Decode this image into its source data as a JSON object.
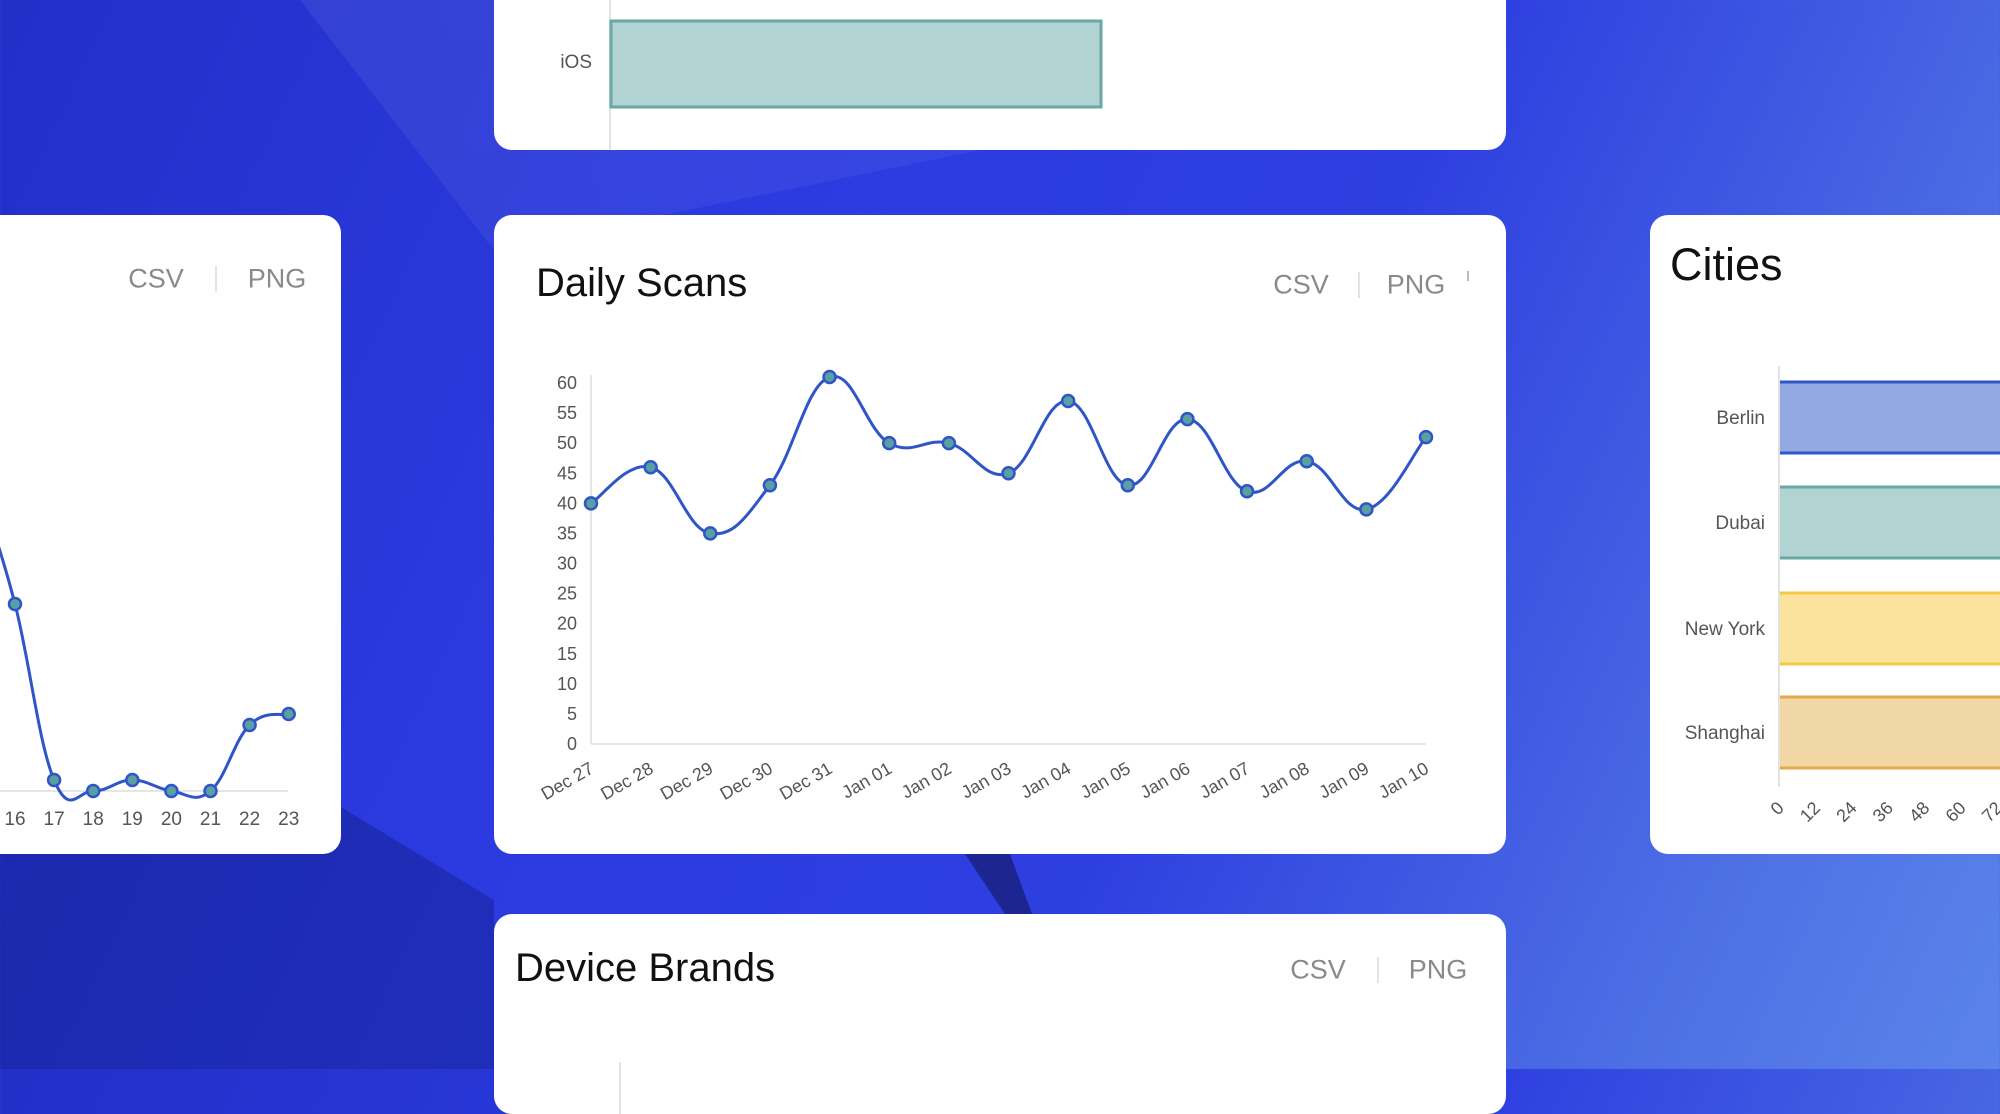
{
  "colors": {
    "line": "#2f55c8",
    "point_fill": "#5aa0a0",
    "berlin": "#93a9e2",
    "berlin_border": "#2f55c8",
    "dubai": "#b1d4d3",
    "dubai_border": "#6aa8a5",
    "newyork": "#fbe39e",
    "newyork_border": "#f4c842",
    "shanghai": "#f1d7a6",
    "shanghai_border": "#e3aa4a"
  },
  "export": {
    "csv": "CSV",
    "png": "PNG"
  },
  "chart_data": [
    {
      "id": "platforms",
      "type": "bar",
      "orientation": "horizontal",
      "categories": [
        "iOS"
      ],
      "title": ""
    },
    {
      "id": "hourly",
      "type": "line",
      "title": "",
      "categories": [
        "16",
        "17",
        "18",
        "19",
        "20",
        "21",
        "22",
        "23"
      ],
      "values": [
        17,
        1,
        0,
        1,
        0,
        0,
        6,
        7
      ]
    },
    {
      "id": "daily",
      "type": "line",
      "title": "Daily Scans",
      "categories": [
        "Dec 27",
        "Dec 28",
        "Dec 29",
        "Dec 30",
        "Dec 31",
        "Jan 01",
        "Jan 02",
        "Jan 03",
        "Jan 04",
        "Jan 05",
        "Jan 06",
        "Jan 07",
        "Jan 08",
        "Jan 09",
        "Jan 10"
      ],
      "values": [
        40,
        46,
        35,
        43,
        61,
        50,
        50,
        45,
        57,
        43,
        54,
        42,
        47,
        39,
        51
      ],
      "yticks": [
        0,
        5,
        10,
        15,
        20,
        25,
        30,
        35,
        40,
        45,
        50,
        55,
        60
      ],
      "ylim": [
        0,
        60
      ]
    },
    {
      "id": "cities",
      "type": "bar",
      "orientation": "horizontal",
      "title": "Cities",
      "categories": [
        "Berlin",
        "Dubai",
        "New York",
        "Shanghai"
      ],
      "xticks": [
        "0",
        "12",
        "24",
        "36",
        "48",
        "60",
        "72"
      ]
    },
    {
      "id": "brands",
      "type": "bar",
      "title": "Device Brands"
    }
  ]
}
